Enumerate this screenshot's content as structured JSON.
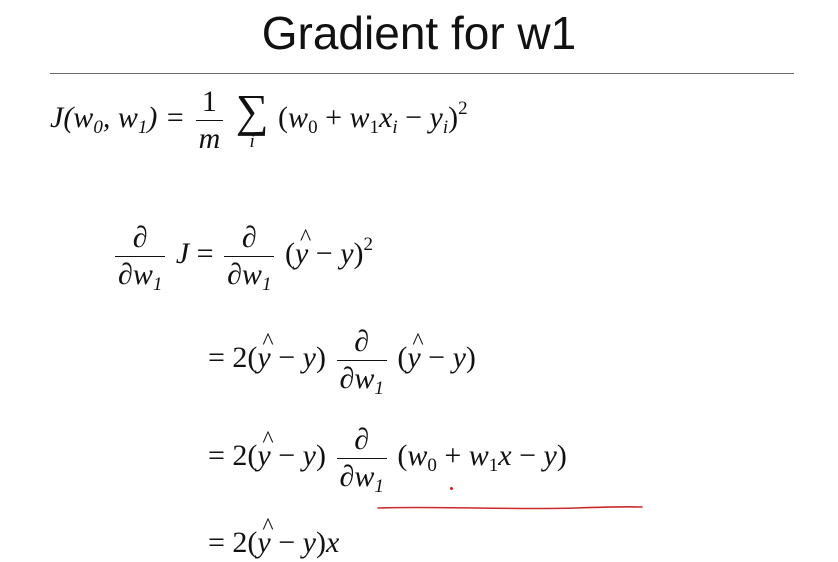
{
  "slide": {
    "title": "Gradient for w1"
  },
  "eq1": {
    "lhs": "J(w₀, w₁) =",
    "frac_num": "1",
    "frac_den": "m",
    "sum_symbol": "∑",
    "sum_index": "i",
    "body": "(w₀ + w₁xᵢ − yᵢ)²"
  },
  "eq2": {
    "frac_num": "∂",
    "frac_den": "∂w₁",
    "lhs_tail": "J =",
    "rhs_frac_num": "∂",
    "rhs_frac_den": "∂w₁",
    "rhs_tail": "(ŷ − y)²"
  },
  "eq3": {
    "prefix": "= 2(ŷ − y)",
    "frac_num": "∂",
    "frac_den": "∂w₁",
    "tail": "(ŷ − y)"
  },
  "eq4": {
    "prefix": "= 2(ŷ − y)",
    "frac_num": "∂",
    "frac_den": "∂w₁",
    "tail": "(w₀ + w₁x − y)"
  },
  "eq5": {
    "text": "= 2(ŷ − y)x"
  },
  "annotation": {
    "color": "#cc2a2a"
  }
}
